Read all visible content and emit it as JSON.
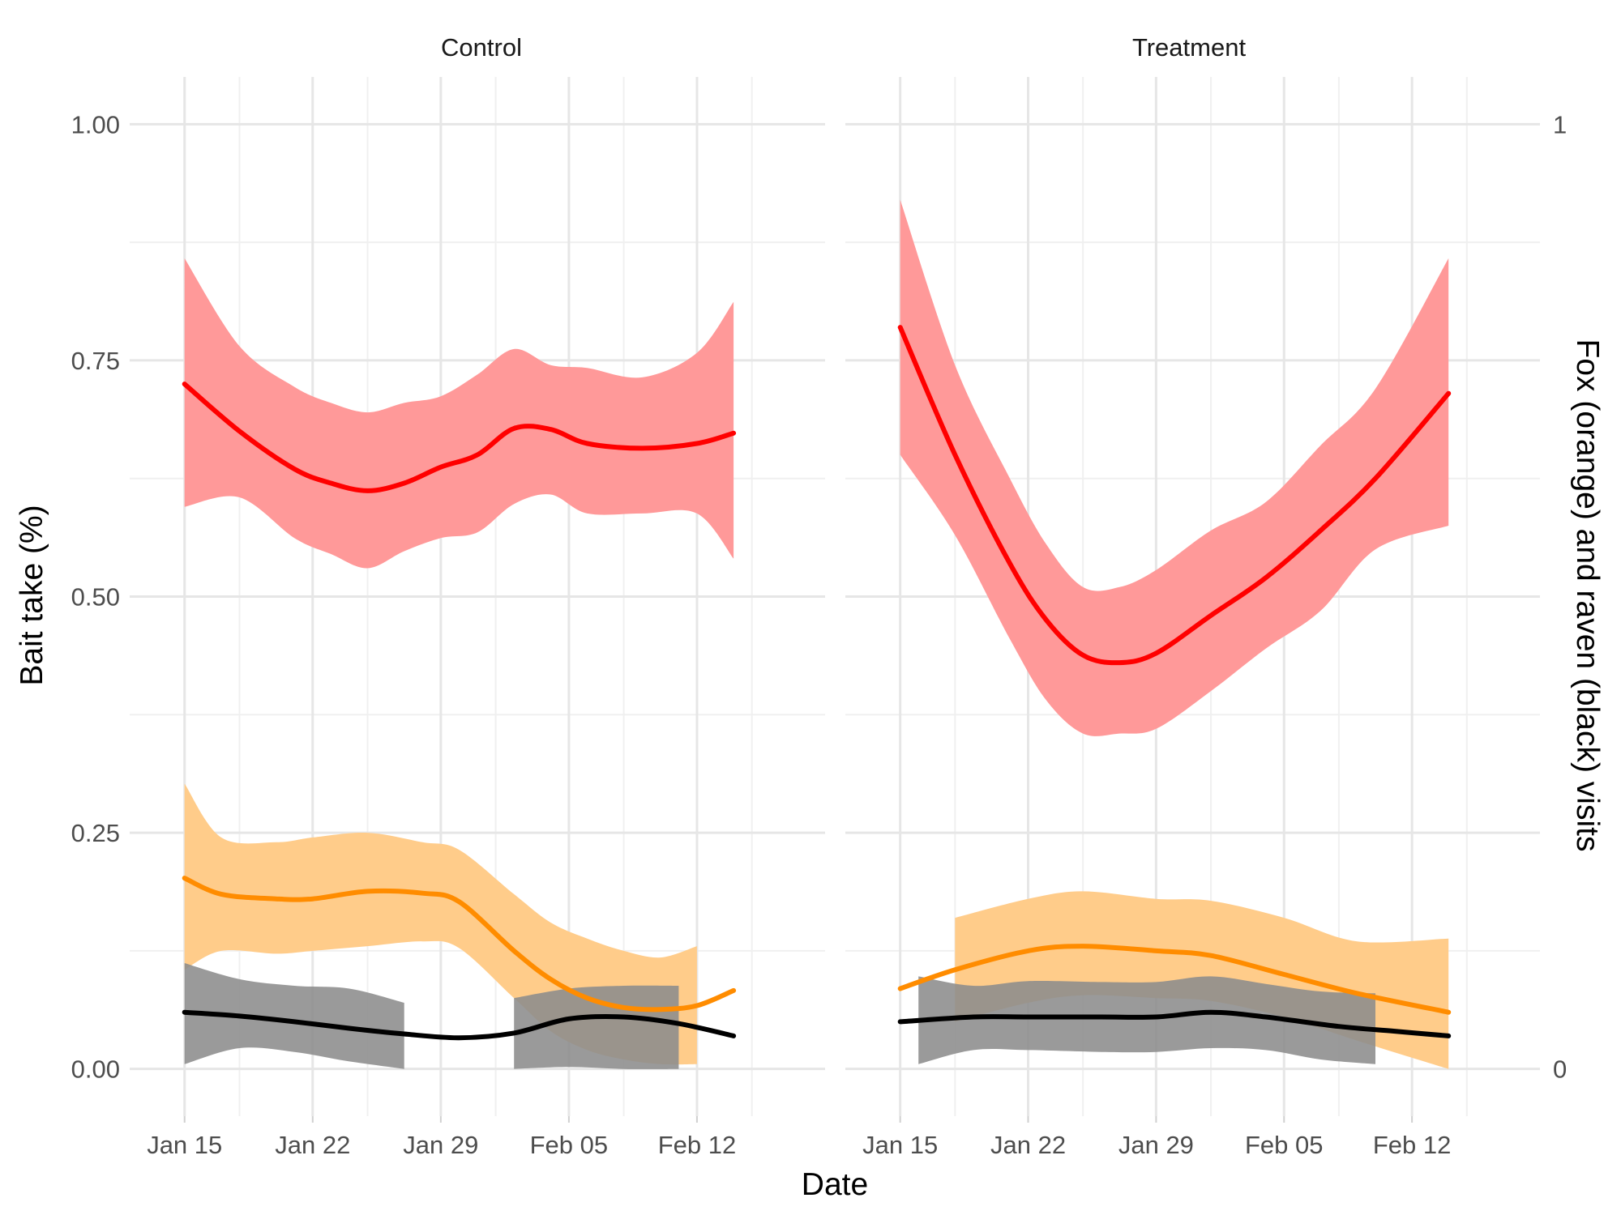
{
  "chart_data": {
    "type": "line",
    "xlabel": "Date",
    "ylabel": "Bait take (%)",
    "y2label": "Fox (orange) and raven (black) visits",
    "ylim": [
      -0.05,
      1.05
    ],
    "y_ticks": [
      0.0,
      0.25,
      0.5,
      0.75,
      1.0
    ],
    "y_tick_labels": [
      "0.00",
      "0.25",
      "0.50",
      "0.75",
      "1.00"
    ],
    "y2_ticks": [
      0,
      1
    ],
    "y2_tick_labels": [
      "0",
      "1"
    ],
    "x_tick_labels": [
      "Jan 15",
      "Jan 22",
      "Jan 29",
      "Feb 05",
      "Feb 12"
    ],
    "x_ticks": [
      "2019-01-15",
      "2019-01-22",
      "2019-01-29",
      "2019-02-05",
      "2019-02-12"
    ],
    "xlim": [
      "2019-01-12",
      "2019-02-19"
    ],
    "grid": true,
    "colors": {
      "bait_line": "#ff0000",
      "bait_band": "#ff9999",
      "fox_line": "#ff8c00",
      "fox_band": "#ffcc8a",
      "raven_line": "#000000",
      "raven_band": "#8c8c8c"
    },
    "panels": [
      {
        "title": "Control",
        "series": [
          {
            "role": "bait_take",
            "x": [
              "2019-01-15",
              "2019-01-18",
              "2019-01-21",
              "2019-01-23",
              "2019-01-25",
              "2019-01-27",
              "2019-01-29",
              "2019-01-31",
              "2019-02-02",
              "2019-02-04",
              "2019-02-06",
              "2019-02-09",
              "2019-02-12",
              "2019-02-14"
            ],
            "y": [
              0.725,
              0.675,
              0.635,
              0.62,
              0.612,
              0.62,
              0.637,
              0.65,
              0.678,
              0.677,
              0.662,
              0.657,
              0.662,
              0.673
            ],
            "lower": [
              0.595,
              0.605,
              0.562,
              0.545,
              0.53,
              0.548,
              0.562,
              0.568,
              0.598,
              0.608,
              0.588,
              0.588,
              0.588,
              0.54
            ],
            "upper": [
              0.858,
              0.765,
              0.722,
              0.705,
              0.695,
              0.705,
              0.712,
              0.735,
              0.762,
              0.745,
              0.742,
              0.732,
              0.758,
              0.812
            ]
          },
          {
            "role": "fox_visits",
            "x": [
              "2019-01-15",
              "2019-01-17",
              "2019-01-20",
              "2019-01-22",
              "2019-01-25",
              "2019-01-28",
              "2019-01-30",
              "2019-02-02",
              "2019-02-04",
              "2019-02-06",
              "2019-02-08",
              "2019-02-10",
              "2019-02-12",
              "2019-02-14"
            ],
            "y": [
              0.202,
              0.185,
              0.18,
              0.18,
              0.188,
              0.186,
              0.177,
              0.125,
              0.095,
              0.075,
              0.065,
              0.063,
              0.067,
              0.083
            ],
            "lower": [
              0.105,
              0.125,
              0.122,
              0.125,
              0.13,
              0.135,
              0.128,
              0.075,
              0.04,
              0.02,
              0.01,
              0.005,
              0.005,
              null
            ],
            "upper": [
              0.302,
              0.245,
              0.24,
              0.245,
              0.25,
              0.24,
              0.232,
              0.185,
              0.155,
              0.138,
              0.125,
              0.118,
              0.13,
              null
            ]
          },
          {
            "role": "raven_visits",
            "x": [
              "2019-01-15",
              "2019-01-18",
              "2019-01-21",
              "2019-01-24",
              "2019-01-27",
              "2019-01-30",
              "2019-02-02",
              "2019-02-05",
              "2019-02-08",
              "2019-02-11",
              "2019-02-14"
            ],
            "y": [
              0.06,
              0.056,
              0.05,
              0.043,
              0.037,
              0.033,
              0.038,
              0.053,
              0.055,
              0.048,
              0.035
            ],
            "band_segments": [
              {
                "x": [
                  "2019-01-15",
                  "2019-01-18",
                  "2019-01-21",
                  "2019-01-24",
                  "2019-01-27"
                ],
                "lower": [
                  0.005,
                  0.022,
                  0.018,
                  0.008,
                  0.0
                ],
                "upper": [
                  0.112,
                  0.095,
                  0.088,
                  0.085,
                  0.07
                ]
              },
              {
                "x": [
                  "2019-02-02",
                  "2019-02-05",
                  "2019-02-08",
                  "2019-02-11"
                ],
                "lower": [
                  0.0,
                  0.002,
                  0.0,
                  0.0
                ],
                "upper": [
                  0.075,
                  0.085,
                  0.088,
                  0.088
                ]
              }
            ]
          }
        ]
      },
      {
        "title": "Treatment",
        "series": [
          {
            "role": "bait_take",
            "x": [
              "2019-01-15",
              "2019-01-18",
              "2019-01-21",
              "2019-01-23",
              "2019-01-25",
              "2019-01-27",
              "2019-01-29",
              "2019-02-01",
              "2019-02-04",
              "2019-02-07",
              "2019-02-10",
              "2019-02-14"
            ],
            "y": [
              0.785,
              0.65,
              0.535,
              0.475,
              0.438,
              0.43,
              0.44,
              0.48,
              0.52,
              0.57,
              0.625,
              0.715
            ],
            "lower": [
              0.65,
              0.565,
              0.455,
              0.39,
              0.355,
              0.355,
              0.36,
              0.4,
              0.445,
              0.485,
              0.55,
              0.575
            ],
            "upper": [
              0.92,
              0.745,
              0.625,
              0.555,
              0.51,
              0.51,
              0.528,
              0.57,
              0.6,
              0.66,
              0.72,
              0.858
            ]
          },
          {
            "role": "fox_visits",
            "x": [
              "2019-01-15",
              "2019-01-18",
              "2019-01-22",
              "2019-01-25",
              "2019-01-29",
              "2019-02-01",
              "2019-02-05",
              "2019-02-09",
              "2019-02-14"
            ],
            "y": [
              0.085,
              0.105,
              0.125,
              0.13,
              0.125,
              0.12,
              0.1,
              0.08,
              0.06
            ],
            "lower": [
              null,
              0.05,
              0.07,
              0.078,
              0.075,
              0.072,
              0.055,
              0.03,
              0.0
            ],
            "upper": [
              null,
              0.16,
              0.18,
              0.188,
              0.18,
              0.178,
              0.16,
              0.135,
              0.138
            ]
          },
          {
            "role": "raven_visits",
            "x": [
              "2019-01-15",
              "2019-01-19",
              "2019-01-22",
              "2019-01-26",
              "2019-01-29",
              "2019-02-01",
              "2019-02-04",
              "2019-02-08",
              "2019-02-11",
              "2019-02-14"
            ],
            "y": [
              0.05,
              0.055,
              0.055,
              0.055,
              0.055,
              0.06,
              0.055,
              0.045,
              0.04,
              0.035
            ],
            "band_segments": [
              {
                "x": [
                  "2019-01-16",
                  "2019-01-19",
                  "2019-01-22",
                  "2019-01-26",
                  "2019-01-29",
                  "2019-02-01",
                  "2019-02-04",
                  "2019-02-07",
                  "2019-02-10"
                ],
                "lower": [
                  0.005,
                  0.02,
                  0.02,
                  0.018,
                  0.018,
                  0.022,
                  0.02,
                  0.01,
                  0.005
                ],
                "upper": [
                  0.098,
                  0.088,
                  0.093,
                  0.092,
                  0.092,
                  0.098,
                  0.09,
                  0.082,
                  0.08
                ]
              }
            ]
          }
        ]
      }
    ]
  }
}
